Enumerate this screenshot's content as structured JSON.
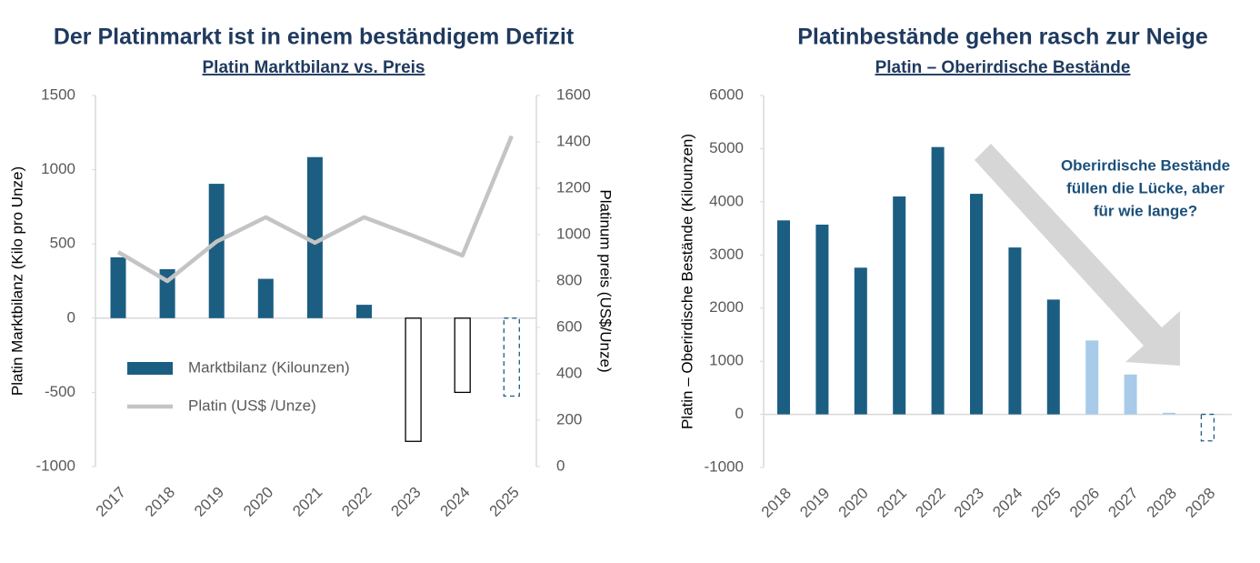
{
  "chart_data": [
    {
      "type": "combo",
      "title": "Der Platinmarkt ist in einem beständigem Defizit",
      "subtitle": "Platin Marktbilanz vs. Preis",
      "y_label": "Platin Marktbilanz (Kilo pro Unze)",
      "y2_label": "Platinum preis (US$/Unze)",
      "categories": [
        "2017",
        "2018",
        "2019",
        "2020",
        "2021",
        "2022",
        "2023",
        "2024",
        "2025"
      ],
      "series": [
        {
          "name": "Marktbilanz (Kilounzen)",
          "type": "bar",
          "color": "#1b5e82",
          "values": [
            410,
            330,
            905,
            265,
            1085,
            90,
            -830,
            -500,
            -525
          ],
          "point_colors": [
            "#1b5e82",
            "#1b5e82",
            "#1b5e82",
            "#1b5e82",
            "#1b5e82",
            "#1b5e82",
            "#ffffff",
            "#ffffff",
            "#ffffff"
          ],
          "dashed": [
            false,
            false,
            false,
            false,
            false,
            false,
            false,
            false,
            true
          ]
        },
        {
          "name": "Platin (US$ /Unze)",
          "type": "line",
          "axis": "y2",
          "color": "#c4c4c4",
          "values": [
            925,
            800,
            970,
            1075,
            965,
            1075,
            995,
            910,
            1425
          ]
        }
      ],
      "ylim": [
        -1000,
        1500
      ],
      "yticks": [
        -1000,
        -500,
        0,
        500,
        1000,
        1500
      ],
      "y2lim": [
        0,
        1600
      ],
      "y2ticks": [
        0,
        200,
        400,
        600,
        800,
        1000,
        1200,
        1400,
        1600
      ]
    },
    {
      "type": "bar",
      "title": "Platinbestände gehen rasch zur Neige",
      "subtitle": "Platin – Oberirdische Bestände",
      "y_label": "Platin – Oberirdische Bestände (Kilounzen)",
      "annotation": [
        "Oberirdische Bestände",
        "füllen die Lücke, aber",
        "für wie lange?"
      ],
      "categories": [
        "2018",
        "2019",
        "2020",
        "2021",
        "2022",
        "2023",
        "2024",
        "2025",
        "2026",
        "2027",
        "2028",
        "2028"
      ],
      "values": [
        3650,
        3570,
        2760,
        4100,
        5030,
        4150,
        3140,
        2160,
        1390,
        750,
        30,
        -500
      ],
      "colors": [
        "#1b5e82",
        "#1b5e82",
        "#1b5e82",
        "#1b5e82",
        "#1b5e82",
        "#1b5e82",
        "#1b5e82",
        "#1b5e82",
        "#a7cbe8",
        "#a7cbe8",
        "#a7cbe8",
        "#ffffff"
      ],
      "dashed": [
        false,
        false,
        false,
        false,
        false,
        false,
        false,
        false,
        false,
        false,
        false,
        true
      ],
      "ylim": [
        -1000,
        6000
      ],
      "yticks": [
        -1000,
        0,
        1000,
        2000,
        3000,
        4000,
        5000,
        6000
      ]
    }
  ]
}
